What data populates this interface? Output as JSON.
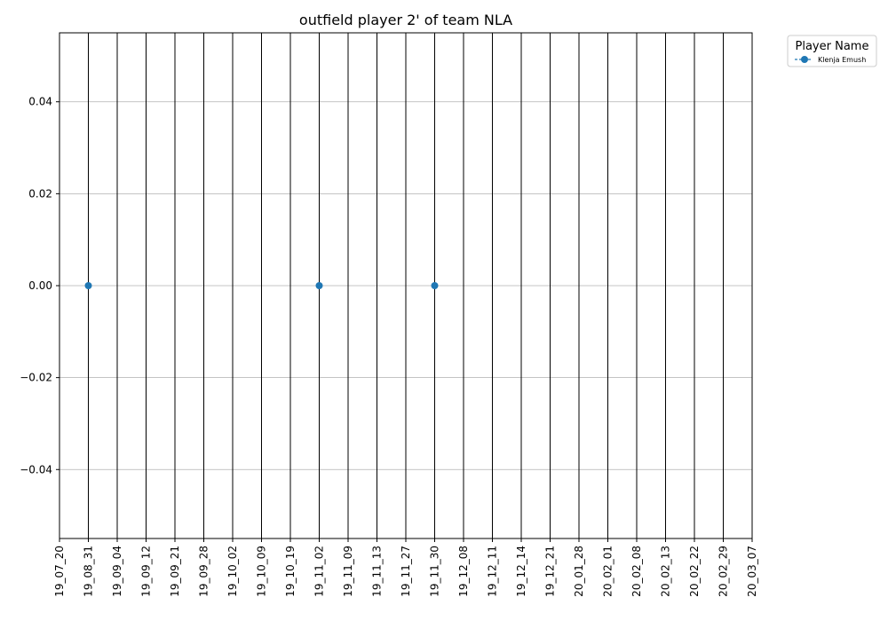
{
  "chart_data": {
    "type": "line",
    "title": "outfield player 2' of team NLA",
    "xlabel": "",
    "ylabel": "",
    "categories": [
      "19_07_20",
      "19_08_31",
      "19_09_04",
      "19_09_12",
      "19_09_21",
      "19_09_28",
      "19_10_02",
      "19_10_09",
      "19_10_19",
      "19_11_02",
      "19_11_09",
      "19_11_13",
      "19_11_27",
      "19_11_30",
      "19_12_08",
      "19_12_11",
      "19_12_14",
      "19_12_21",
      "20_01_28",
      "20_02_01",
      "20_02_08",
      "20_02_13",
      "20_02_22",
      "20_02_29",
      "20_03_07"
    ],
    "series": [
      {
        "name": "Klenja Emush",
        "color": "#1f77b4",
        "linestyle": "dashed",
        "points": [
          {
            "x": "19_08_31",
            "y": 0.0
          },
          {
            "x": "19_11_02",
            "y": 0.0
          },
          {
            "x": "19_11_30",
            "y": 0.0
          }
        ]
      }
    ],
    "ylim": [
      -0.055,
      0.055
    ],
    "yticks": [
      -0.04,
      -0.02,
      0.0,
      0.02,
      0.04
    ],
    "ytick_labels": [
      "−0.04",
      "−0.02",
      "0.00",
      "0.02",
      "0.04"
    ],
    "vertical_lines_at_categories": true,
    "grid": "y",
    "legend": {
      "title": "Player Name",
      "placement": "outside-top-right",
      "entries": [
        "Klenja Emush"
      ]
    }
  }
}
